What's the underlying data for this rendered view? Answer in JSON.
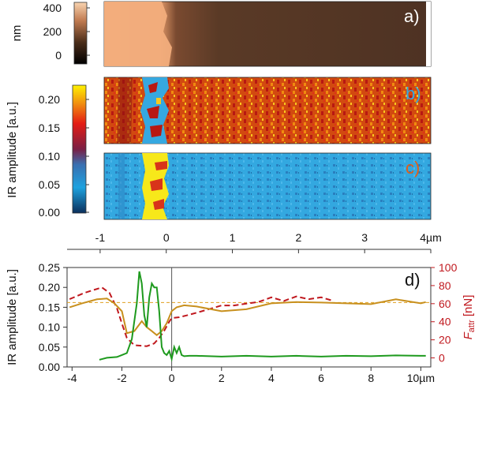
{
  "chart_data": [
    {
      "panel": "a",
      "type": "heatmap",
      "label": "a)",
      "colorbar": {
        "unit": "nm",
        "ticks": [
          "400",
          "200",
          "0"
        ],
        "range": [
          -50,
          450
        ]
      },
      "colors": {
        "low": "#000000",
        "high": "#f6c89e",
        "map_dark": "#5a3a26",
        "map_light": "#f2ad7c"
      }
    },
    {
      "panel": "b",
      "type": "heatmap",
      "label": "b)",
      "colors": {
        "background": "#d24a10",
        "speckle_dark": "#b81812",
        "speckle_bright": "#f7c820",
        "blue_region": "#36a8e0"
      }
    },
    {
      "panel": "c",
      "type": "heatmap",
      "label": "c)",
      "colors": {
        "background": "#33a8e0",
        "speckle": "#2a7fbf",
        "yellow_region": "#f7e81a",
        "red_region": "#d8341a"
      }
    },
    {
      "panel": "colorbar_bc",
      "type": "heatmap",
      "ylabel": "IR amplitude [a.u.]",
      "ticks": [
        "0.20",
        "0.15",
        "0.10",
        "0.05",
        "0.00"
      ],
      "colors": {
        "top": "#fff200",
        "mid_high": "#e41c14",
        "mid": "#7a1f44",
        "mid_low": "#1ea2df",
        "bottom": "#0b2f5c"
      }
    },
    {
      "panel": "d",
      "type": "line",
      "label": "d)",
      "ylabel": "IR amplitude [a.u.]",
      "y2label_main": "F",
      "y2label_sub": "attr",
      "y2label_unit": " [nN]",
      "bottom_axis": {
        "ticks": [
          "-4",
          "-2",
          "0",
          "2",
          "4",
          "6",
          "8"
        ],
        "last_tick": "10",
        "unit": "µm",
        "range": [
          -4.2,
          10.4
        ]
      },
      "top_axis": {
        "ticks": [
          "-1",
          "0",
          "1",
          "2",
          "3"
        ],
        "last_tick": "4",
        "unit": "µm",
        "range": [
          -1.5,
          4
        ]
      },
      "ylim": [
        0,
        0.25
      ],
      "y_ticks": [
        "0.00",
        "0.05",
        "0.10",
        "0.15",
        "0.20",
        "0.25"
      ],
      "y2lim": [
        -10,
        100
      ],
      "y2_ticks": [
        "0",
        "20",
        "40",
        "60",
        "80",
        "100"
      ],
      "reference_line": {
        "y": 0.162,
        "color": "#e0a020"
      },
      "vline_x": 0,
      "series": [
        {
          "name": "IR amplitude (green)",
          "axis": "left",
          "color": "#1e9a1e",
          "x": [
            -2.9,
            -2.6,
            -2.2,
            -2.0,
            -1.8,
            -1.6,
            -1.4,
            -1.3,
            -1.2,
            -1.1,
            -1.0,
            -0.9,
            -0.8,
            -0.7,
            -0.6,
            -0.5,
            -0.4,
            -0.3,
            -0.2,
            -0.1,
            0.0,
            0.1,
            0.2,
            0.3,
            0.4,
            0.5,
            0.7,
            1.0,
            2,
            3,
            4,
            5,
            6,
            7,
            8,
            9,
            10,
            10.2
          ],
          "y": [
            0.018,
            0.023,
            0.025,
            0.03,
            0.035,
            0.07,
            0.16,
            0.24,
            0.21,
            0.13,
            0.1,
            0.175,
            0.21,
            0.2,
            0.2,
            0.14,
            0.05,
            0.035,
            0.03,
            0.04,
            0.02,
            0.05,
            0.035,
            0.05,
            0.03,
            0.027,
            0.028,
            0.028,
            0.026,
            0.028,
            0.026,
            0.028,
            0.026,
            0.028,
            0.027,
            0.029,
            0.028,
            0.028
          ]
        },
        {
          "name": "IR amplitude (orange)",
          "axis": "left",
          "color": "#c8901e",
          "x": [
            -4.1,
            -3.6,
            -3.0,
            -2.6,
            -2.3,
            -2.0,
            -1.8,
            -1.5,
            -1.2,
            -1.0,
            -0.8,
            -0.6,
            -0.4,
            -0.2,
            0.0,
            0.2,
            0.5,
            1.0,
            2.0,
            3.0,
            4.0,
            5.0,
            6.0,
            7.0,
            8.0,
            9.0,
            10.0,
            10.2
          ],
          "y": [
            0.15,
            0.16,
            0.17,
            0.172,
            0.16,
            0.14,
            0.085,
            0.09,
            0.115,
            0.1,
            0.09,
            0.08,
            0.09,
            0.11,
            0.14,
            0.15,
            0.155,
            0.152,
            0.14,
            0.145,
            0.16,
            0.163,
            0.162,
            0.16,
            0.158,
            0.17,
            0.16,
            0.163
          ]
        },
        {
          "name": "F_attr (dashed)",
          "axis": "right",
          "style": "dashed",
          "color": "#c0181e",
          "x": [
            -4.1,
            -3.5,
            -2.8,
            -2.5,
            -2.2,
            -2.0,
            -1.8,
            -1.5,
            -1.0,
            -0.7,
            -0.5,
            -0.3,
            -0.1,
            0.0,
            0.3,
            0.6,
            1.0,
            1.5,
            2.0,
            2.5,
            3.0,
            3.5,
            4.0,
            4.5,
            5.0,
            5.5,
            6.0,
            6.5
          ],
          "y": [
            65,
            72,
            78,
            72,
            55,
            38,
            22,
            14,
            13,
            16,
            22,
            30,
            40,
            44,
            45,
            47,
            50,
            54,
            58,
            58,
            60,
            62,
            67,
            63,
            68,
            65,
            67,
            63
          ]
        }
      ]
    }
  ]
}
